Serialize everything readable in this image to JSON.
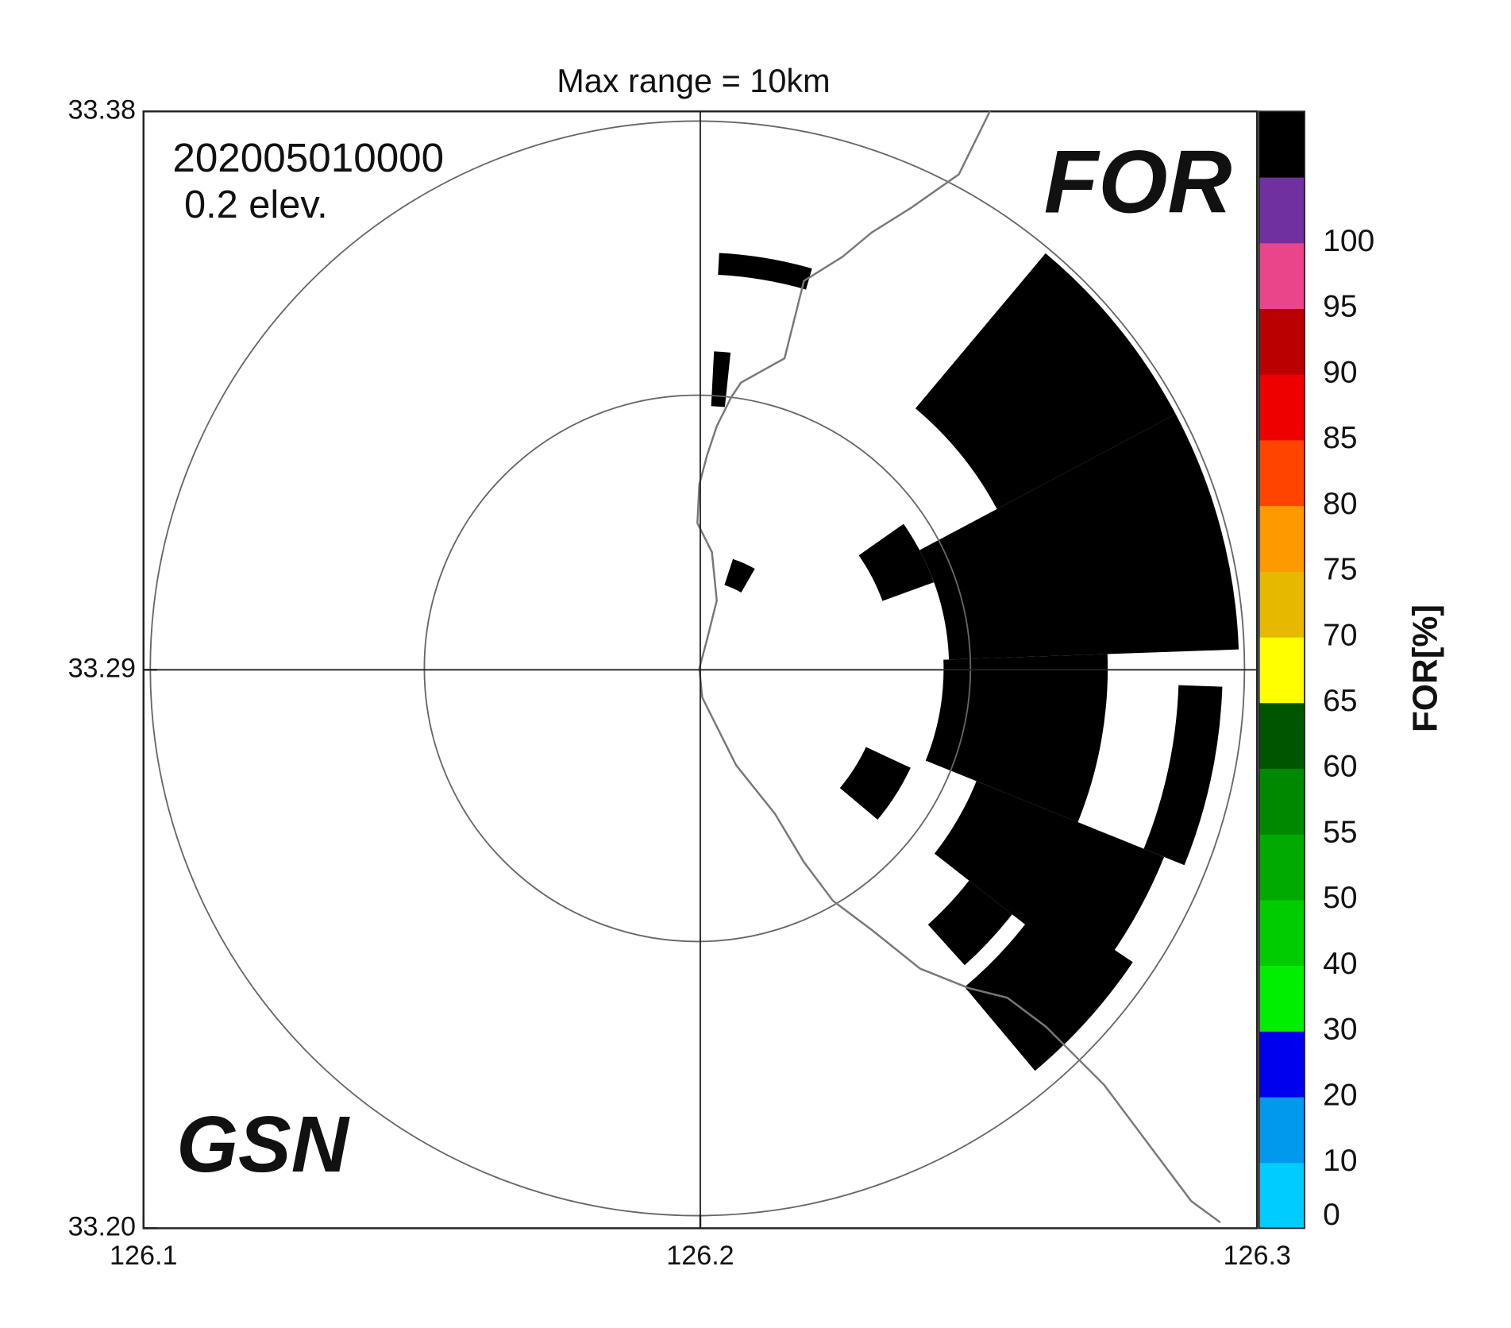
{
  "chart_data": {
    "type": "radar-ppi",
    "title": "Max range =  10km",
    "time": "202005010000",
    "elevation": "0.2 elev.",
    "variable": "FOR",
    "station": "GSN",
    "xlim": [
      126.1,
      126.3
    ],
    "xticks": [
      126.1,
      126.2,
      126.3
    ],
    "ylim": [
      33.2,
      33.38
    ],
    "yticks": [
      {
        "value": 33.2,
        "label": "33.20"
      },
      33.29,
      33.38
    ],
    "colorbar": {
      "label": "FOR[%]",
      "levels": [
        0,
        10,
        20,
        30,
        40,
        50,
        55,
        60,
        65,
        70,
        75,
        80,
        85,
        90,
        95,
        100
      ],
      "colors": [
        "#00ccff",
        "#0099ee",
        "#0000ee",
        "#00ee00",
        "#00cc00",
        "#00aa00",
        "#008800",
        "#005500",
        "#ffff00",
        "#e6b800",
        "#ff9900",
        "#ff4400",
        "#ee0000",
        "#bb0000",
        "#e8458b",
        "#7030a0",
        "#000000"
      ]
    },
    "echo_color": "#000000",
    "echoes": [
      {
        "az": [
          40,
          62
        ],
        "r": [
          6.2,
          9.9
        ]
      },
      {
        "az": [
          62,
          88
        ],
        "r": [
          4.6,
          9.9
        ]
      },
      {
        "az": [
          88,
          112
        ],
        "r": [
          4.5,
          7.5
        ]
      },
      {
        "az": [
          92,
          112
        ],
        "r": [
          8.8,
          9.6
        ]
      },
      {
        "az": [
          112,
          128
        ],
        "r": [
          5.5,
          9.2
        ]
      },
      {
        "az": [
          124,
          140
        ],
        "r": [
          7.6,
          9.6
        ]
      },
      {
        "az": [
          55,
          70
        ],
        "r": [
          3.6,
          4.6
        ]
      },
      {
        "az": [
          3,
          16
        ],
        "r": [
          7.2,
          7.6
        ]
      },
      {
        "az": [
          3,
          6
        ],
        "r": [
          4.8,
          5.8
        ]
      },
      {
        "az": [
          18,
          30
        ],
        "r": [
          1.6,
          2.1
        ]
      },
      {
        "az": [
          115,
          130
        ],
        "r": [
          3.4,
          4.3
        ]
      },
      {
        "az": [
          128,
          138
        ],
        "r": [
          6.3,
          7.3
        ]
      }
    ]
  }
}
